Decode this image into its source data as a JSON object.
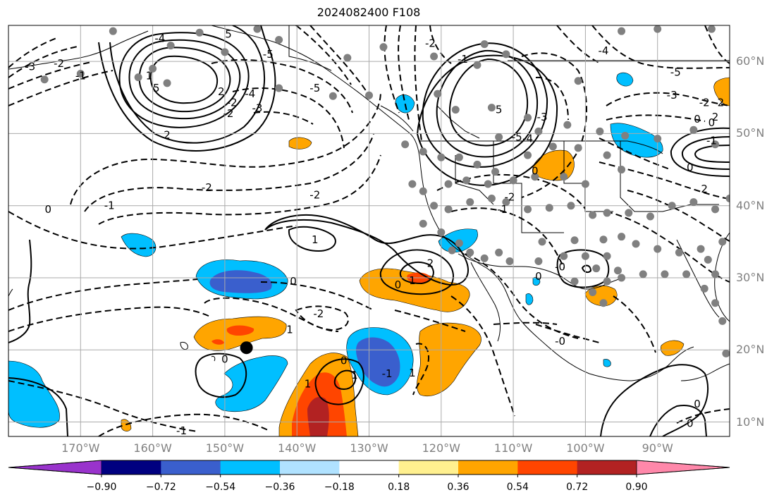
{
  "title": "2024082400 F108",
  "map": {
    "projection": "PlateCarree",
    "lon_range": [
      -180,
      -80
    ],
    "lat_range": [
      8,
      65
    ],
    "grid": true,
    "lat_ticks": [
      {
        "value": 60,
        "label": "60°N"
      },
      {
        "value": 50,
        "label": "50°N"
      },
      {
        "value": 40,
        "label": "40°N"
      },
      {
        "value": 30,
        "label": "30°N"
      },
      {
        "value": 20,
        "label": "20°N"
      },
      {
        "value": 10,
        "label": "10°N"
      }
    ],
    "lon_ticks": [
      {
        "value": -170,
        "label": "170°W"
      },
      {
        "value": -160,
        "label": "160°W"
      },
      {
        "value": -150,
        "label": "150°W"
      },
      {
        "value": -140,
        "label": "140°W"
      },
      {
        "value": -130,
        "label": "130°W"
      },
      {
        "value": -120,
        "label": "120°W"
      },
      {
        "value": -110,
        "label": "110°W"
      },
      {
        "value": -100,
        "label": "100°W"
      },
      {
        "value": -90,
        "label": "90°W"
      }
    ],
    "marker": {
      "lon": -147,
      "lat": 20.3,
      "color": "#000000"
    },
    "station_color": "#808080",
    "stations": [
      [
        -165.5,
        64.2
      ],
      [
        -157.5,
        62.2
      ],
      [
        -153.5,
        64
      ],
      [
        -145.5,
        64.5
      ],
      [
        -142.5,
        63
      ],
      [
        -150,
        61.3
      ],
      [
        -162,
        57.8
      ],
      [
        -175,
        57.5
      ],
      [
        -170,
        58.3
      ],
      [
        -160,
        59
      ],
      [
        -158,
        57
      ],
      [
        -133,
        60.5
      ],
      [
        -128,
        62
      ],
      [
        -121,
        60.7
      ],
      [
        -114,
        62.4
      ],
      [
        -111,
        61
      ],
      [
        -95,
        64.2
      ],
      [
        -90,
        64.5
      ],
      [
        -82.5,
        64.5
      ],
      [
        -101,
        57.3
      ],
      [
        -115,
        59.5
      ],
      [
        -142.5,
        56.3
      ],
      [
        -135,
        55.2
      ],
      [
        -130,
        55.3
      ],
      [
        -120.5,
        55.5
      ],
      [
        -118,
        53.3
      ],
      [
        -113,
        53.6
      ],
      [
        -108,
        52.2
      ],
      [
        -106.5,
        50.3
      ],
      [
        -102.5,
        51.2
      ],
      [
        -98,
        50.3
      ],
      [
        -94.5,
        49.7
      ],
      [
        -90,
        49.3
      ],
      [
        -85,
        50.5
      ],
      [
        -82,
        48.5
      ],
      [
        -112,
        49.5
      ],
      [
        -125,
        48.5
      ],
      [
        -122.5,
        47.5
      ],
      [
        -120,
        46.7
      ],
      [
        -117.5,
        46.7
      ],
      [
        -115,
        45.7
      ],
      [
        -112.5,
        44.7
      ],
      [
        -108,
        47
      ],
      [
        -104.5,
        48.2
      ],
      [
        -101,
        48
      ],
      [
        -97,
        47
      ],
      [
        -95,
        45
      ],
      [
        -100,
        43
      ],
      [
        -103,
        44
      ],
      [
        -107,
        44
      ],
      [
        -110,
        43.5
      ],
      [
        -113.5,
        43
      ],
      [
        -116.5,
        43.5
      ],
      [
        -119,
        43
      ],
      [
        -122.5,
        42
      ],
      [
        -124,
        43
      ],
      [
        -121,
        40
      ],
      [
        -119,
        39.5
      ],
      [
        -116,
        40.5
      ],
      [
        -113,
        41
      ],
      [
        -111,
        40.5
      ],
      [
        -108,
        39.5
      ],
      [
        -105,
        39.7
      ],
      [
        -102,
        40
      ],
      [
        -99,
        38.7
      ],
      [
        -97,
        39
      ],
      [
        -94,
        39
      ],
      [
        -91,
        38.5
      ],
      [
        -88,
        40
      ],
      [
        -85,
        40.5
      ],
      [
        -82,
        39.5
      ],
      [
        -80,
        41
      ],
      [
        -122.5,
        37.5
      ],
      [
        -120,
        36.3
      ],
      [
        -117.5,
        34.8
      ],
      [
        -116,
        33.5
      ],
      [
        -114,
        32.7
      ],
      [
        -112,
        33.5
      ],
      [
        -110.5,
        32.3
      ],
      [
        -106.5,
        32.3
      ],
      [
        -103,
        33
      ],
      [
        -100,
        33
      ],
      [
        -97,
        33
      ],
      [
        -95,
        35.7
      ],
      [
        -93,
        34.7
      ],
      [
        -90,
        34
      ],
      [
        -87,
        33.5
      ],
      [
        -84,
        34
      ],
      [
        -81,
        35
      ],
      [
        -78,
        36
      ],
      [
        -118.5,
        33.8
      ],
      [
        -106,
        35
      ],
      [
        -101.5,
        35.2
      ],
      [
        -97.5,
        35.3
      ],
      [
        -98.5,
        31.3
      ],
      [
        -95,
        30
      ],
      [
        -92,
        30.5
      ],
      [
        -89,
        30.5
      ],
      [
        -86,
        30.5
      ],
      [
        -83,
        32.5
      ],
      [
        -83.5,
        28.5
      ],
      [
        -82,
        26.5
      ],
      [
        -82,
        30.5
      ],
      [
        -99,
        28
      ],
      [
        -97.5,
        26.5
      ],
      [
        -101.5,
        29.5
      ],
      [
        -95.5,
        31
      ],
      [
        -97,
        29.5
      ],
      [
        -81,
        24
      ],
      [
        -80.5,
        19.5
      ]
    ]
  },
  "colorbar": {
    "colors": [
      "#9933cc",
      "#000080",
      "#3a5fcd",
      "#00bfff",
      "#b0e2ff",
      "#ffffff",
      "#fff08f",
      "#ffa500",
      "#ff4500",
      "#b22222",
      "#ff88aa"
    ],
    "tick_labels": [
      "−0.90",
      "−0.72",
      "−0.54",
      "−0.36",
      "−0.18",
      "0.18",
      "0.36",
      "0.54",
      "0.72",
      "0.90"
    ]
  },
  "contour_labels": [
    {
      "text": "0",
      "lon": -174.5,
      "lat": 39.5
    },
    {
      "text": "-1",
      "lon": -166,
      "lat": 40
    },
    {
      "text": "-2",
      "lon": -152.5,
      "lat": 42.5
    },
    {
      "text": "-3",
      "lon": -177,
      "lat": 59.3
    },
    {
      "text": "-2",
      "lon": -173,
      "lat": 59.7
    },
    {
      "text": "-1",
      "lon": -170,
      "lat": 58
    },
    {
      "text": "1",
      "lon": -160.5,
      "lat": 58
    },
    {
      "text": "5",
      "lon": -159.5,
      "lat": 56.3
    },
    {
      "text": "-4",
      "lon": -159,
      "lat": 63.2
    },
    {
      "text": "-5",
      "lon": -144,
      "lat": 61
    },
    {
      "text": "5",
      "lon": -149.5,
      "lat": 63.8
    },
    {
      "text": "-2",
      "lon": -149.5,
      "lat": 52.8
    },
    {
      "text": "-2",
      "lon": -149,
      "lat": 54.3
    },
    {
      "text": "-3",
      "lon": -145.5,
      "lat": 53.5
    },
    {
      "text": "-4",
      "lon": -146.5,
      "lat": 55.5
    },
    {
      "text": "2",
      "lon": -150.5,
      "lat": 55.8
    },
    {
      "text": "-5",
      "lon": -137.5,
      "lat": 56.3
    },
    {
      "text": "2",
      "lon": -158,
      "lat": 49.8
    },
    {
      "text": "-2",
      "lon": -137.5,
      "lat": 41.5
    },
    {
      "text": "1",
      "lon": -137.5,
      "lat": 35.3
    },
    {
      "text": "0",
      "lon": -140.5,
      "lat": 29.5
    },
    {
      "text": "1",
      "lon": -141,
      "lat": 22.8
    },
    {
      "text": "0",
      "lon": -150,
      "lat": 18.7
    },
    {
      "text": "-2",
      "lon": -137,
      "lat": 25
    },
    {
      "text": "0",
      "lon": -126,
      "lat": 29
    },
    {
      "text": "1",
      "lon": -124,
      "lat": 29.6
    },
    {
      "text": "2",
      "lon": -121.5,
      "lat": 32
    },
    {
      "text": "1",
      "lon": -138.5,
      "lat": 15.3
    },
    {
      "text": "0",
      "lon": -133.5,
      "lat": 18.5
    },
    {
      "text": "1",
      "lon": -132,
      "lat": 16.5
    },
    {
      "text": "-1",
      "lon": -127.5,
      "lat": 16.7
    },
    {
      "text": "1",
      "lon": -124,
      "lat": 16.8
    },
    {
      "text": "-1",
      "lon": -156,
      "lat": 8.8
    },
    {
      "text": "-3",
      "lon": -106,
      "lat": 52.3
    },
    {
      "text": "5",
      "lon": -112,
      "lat": 53.3
    },
    {
      "text": "-5",
      "lon": -109.5,
      "lat": 49.5
    },
    {
      "text": "-4",
      "lon": -108,
      "lat": 49.3
    },
    {
      "text": "-2",
      "lon": -121.5,
      "lat": 62.5
    },
    {
      "text": "-1",
      "lon": -117,
      "lat": 60.3
    },
    {
      "text": "-4",
      "lon": -97.5,
      "lat": 61.5
    },
    {
      "text": "0",
      "lon": -107,
      "lat": 44.8
    },
    {
      "text": "-2",
      "lon": -110.5,
      "lat": 41.2
    },
    {
      "text": "-1",
      "lon": -111.5,
      "lat": 39.5
    },
    {
      "text": "-0",
      "lon": -103.5,
      "lat": 31.5
    },
    {
      "text": "0",
      "lon": -106.5,
      "lat": 30.2
    },
    {
      "text": "-0",
      "lon": -103.5,
      "lat": 21.2
    },
    {
      "text": "-5",
      "lon": -87.5,
      "lat": 58.5
    },
    {
      "text": "-3",
      "lon": -88,
      "lat": 55.3
    },
    {
      "text": "-2",
      "lon": -83.5,
      "lat": 54.3
    },
    {
      "text": "-2",
      "lon": -81.5,
      "lat": 54.3
    },
    {
      "text": "0",
      "lon": -84.5,
      "lat": 52
    },
    {
      "text": "0",
      "lon": -82.5,
      "lat": 51.5
    },
    {
      "text": "2",
      "lon": -82,
      "lat": 52.3
    },
    {
      "text": "-1",
      "lon": -82.5,
      "lat": 49
    },
    {
      "text": "0",
      "lon": -85.5,
      "lat": 45.3
    },
    {
      "text": "2",
      "lon": -83.5,
      "lat": 42.3
    },
    {
      "text": "0",
      "lon": -84.5,
      "lat": 12.5
    },
    {
      "text": "0",
      "lon": -85.5,
      "lat": 9.8
    }
  ]
}
